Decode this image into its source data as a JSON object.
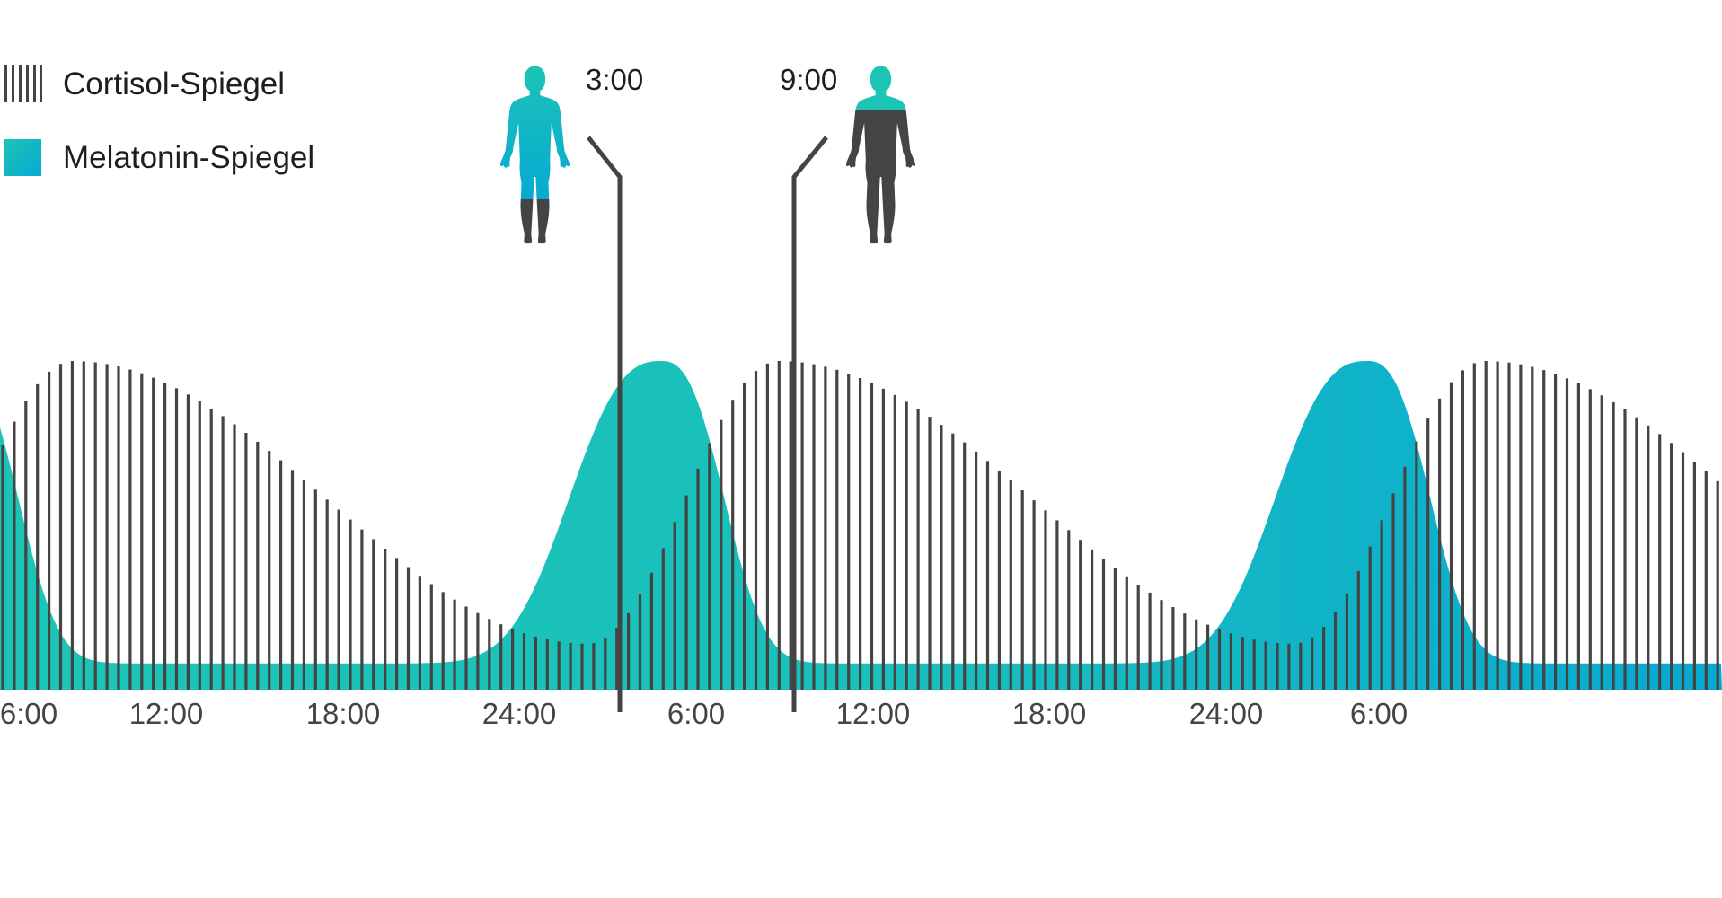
{
  "chart_data": {
    "type": "area",
    "title": "",
    "xlabel": "",
    "ylabel": "",
    "x_tick_labels": [
      "6:00",
      "12:00",
      "18:00",
      "24:00",
      "6:00",
      "12:00",
      "18:00",
      "24:00",
      "6:00"
    ],
    "x_range_hours": [
      6,
      54
    ],
    "grid": false,
    "legend_position": "top-left",
    "series": [
      {
        "name": "Cortisol-Spiegel",
        "style": "vertical-bars",
        "color": "#444444",
        "peak_hours": [
          7.5,
          31.5,
          55.5
        ],
        "trough_hours": [
          25,
          49
        ],
        "relative_max": 1.0,
        "relative_min": 0.14
      },
      {
        "name": "Melatonin-Spiegel",
        "style": "filled-area",
        "color_start": "#1cc4b6",
        "color_end": "#07a9d2",
        "peak_hours": [
          27.5,
          51.5
        ],
        "relative_max": 1.0,
        "relative_min": 0.08
      }
    ],
    "markers": [
      {
        "label": "3:00",
        "hour": 27,
        "figure": "body-melatonin-icon",
        "figure_color": "#1cc4b6"
      },
      {
        "label": "9:00",
        "hour": 33,
        "figure": "body-cortisol-icon",
        "figure_color": "#444444"
      }
    ]
  },
  "colors": {
    "cortisol": "#444444",
    "melatonin_teal": "#1cc4b6",
    "melatonin_blue": "#07a9d2",
    "axis_text": "#444444"
  }
}
